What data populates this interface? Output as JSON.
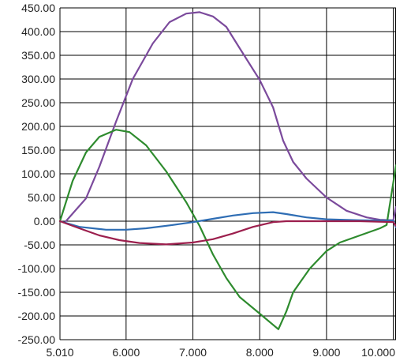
{
  "chart_data": {
    "type": "line",
    "title": "",
    "xlabel": "",
    "ylabel": "",
    "xlim": [
      5.01,
      10.04
    ],
    "ylim": [
      -250,
      450
    ],
    "grid": true,
    "x_ticks": [
      {
        "value": 5.01,
        "label": "5.010"
      },
      {
        "value": 6.0,
        "label": "6.000"
      },
      {
        "value": 7.0,
        "label": "7.000"
      },
      {
        "value": 8.0,
        "label": "8.000"
      },
      {
        "value": 9.0,
        "label": "9.000"
      },
      {
        "value": 10.0,
        "label": "10.000"
      }
    ],
    "y_ticks": [
      {
        "value": 450,
        "label": "450.00"
      },
      {
        "value": 400,
        "label": "400.00"
      },
      {
        "value": 350,
        "label": "350.00"
      },
      {
        "value": 300,
        "label": "300.00"
      },
      {
        "value": 250,
        "label": "250.00"
      },
      {
        "value": 200,
        "label": "200.00"
      },
      {
        "value": 150,
        "label": "150.00"
      },
      {
        "value": 100,
        "label": "100.00"
      },
      {
        "value": 50,
        "label": "50.00"
      },
      {
        "value": 0,
        "label": "0.00"
      },
      {
        "value": -50,
        "label": "-50.00"
      },
      {
        "value": -100,
        "label": "-100.00"
      },
      {
        "value": -150,
        "label": "-150.00"
      },
      {
        "value": -200,
        "label": "-200.00"
      },
      {
        "value": -250,
        "label": "-250.00"
      }
    ],
    "series": [
      {
        "color": "#7b4a9c",
        "points": [
          [
            5.1,
            0
          ],
          [
            5.4,
            48
          ],
          [
            5.6,
            115
          ],
          [
            5.85,
            210
          ],
          [
            6.1,
            300
          ],
          [
            6.4,
            375
          ],
          [
            6.65,
            420
          ],
          [
            6.9,
            438
          ],
          [
            7.1,
            441
          ],
          [
            7.3,
            432
          ],
          [
            7.5,
            410
          ],
          [
            7.7,
            365
          ],
          [
            8.0,
            298
          ],
          [
            8.2,
            240
          ],
          [
            8.35,
            170
          ],
          [
            8.5,
            125
          ],
          [
            8.7,
            90
          ],
          [
            9.0,
            50
          ],
          [
            9.3,
            22
          ],
          [
            9.6,
            8
          ],
          [
            9.8,
            3
          ],
          [
            10.0,
            2
          ],
          [
            10.04,
            30
          ]
        ]
      },
      {
        "color": "#2e8b2e",
        "points": [
          [
            5.01,
            0
          ],
          [
            5.2,
            85
          ],
          [
            5.4,
            145
          ],
          [
            5.6,
            178
          ],
          [
            5.85,
            193
          ],
          [
            6.05,
            188
          ],
          [
            6.3,
            160
          ],
          [
            6.6,
            105
          ],
          [
            6.9,
            40
          ],
          [
            7.1,
            -10
          ],
          [
            7.3,
            -70
          ],
          [
            7.5,
            -120
          ],
          [
            7.7,
            -160
          ],
          [
            8.0,
            -195
          ],
          [
            8.28,
            -228
          ],
          [
            8.4,
            -190
          ],
          [
            8.5,
            -150
          ],
          [
            8.75,
            -100
          ],
          [
            9.0,
            -63
          ],
          [
            9.2,
            -45
          ],
          [
            9.5,
            -30
          ],
          [
            9.8,
            -15
          ],
          [
            9.9,
            -8
          ],
          [
            10.04,
            118
          ]
        ]
      },
      {
        "color": "#2e6db4",
        "points": [
          [
            5.01,
            0
          ],
          [
            5.3,
            -12
          ],
          [
            5.7,
            -18
          ],
          [
            6.0,
            -18
          ],
          [
            6.3,
            -15
          ],
          [
            6.7,
            -8
          ],
          [
            7.0,
            -2
          ],
          [
            7.3,
            5
          ],
          [
            7.6,
            12
          ],
          [
            7.9,
            17
          ],
          [
            8.2,
            19
          ],
          [
            8.4,
            15
          ],
          [
            8.7,
            8
          ],
          [
            9.0,
            4
          ],
          [
            9.5,
            2
          ],
          [
            10.0,
            1
          ],
          [
            10.04,
            -13
          ]
        ]
      },
      {
        "color": "#9c1f4d",
        "points": [
          [
            5.01,
            0
          ],
          [
            5.3,
            -15
          ],
          [
            5.6,
            -30
          ],
          [
            5.9,
            -40
          ],
          [
            6.2,
            -46
          ],
          [
            6.6,
            -49
          ],
          [
            7.0,
            -45
          ],
          [
            7.3,
            -38
          ],
          [
            7.6,
            -26
          ],
          [
            7.9,
            -12
          ],
          [
            8.2,
            -2
          ],
          [
            8.4,
            0
          ],
          [
            9.0,
            0
          ],
          [
            9.5,
            0
          ],
          [
            10.0,
            -2
          ],
          [
            10.04,
            -10
          ]
        ]
      }
    ]
  }
}
